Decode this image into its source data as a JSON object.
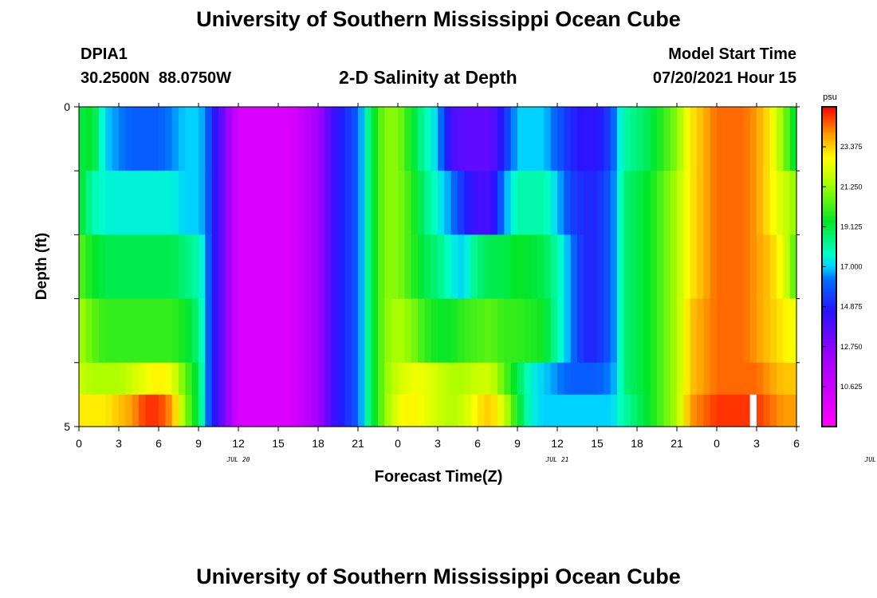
{
  "header": {
    "title": "University of Southern Mississippi Ocean Cube",
    "station_id": "DPIA1",
    "station_coords": "30.2500N  88.0750W",
    "plot_title": "2-D Salinity at Depth",
    "model_start_label": "Model Start Time",
    "model_start_value": "07/20/2021 Hour 15"
  },
  "footer": {
    "title": "University of Southern Mississippi Ocean Cube"
  },
  "chart_data": {
    "type": "heatmap",
    "title": "2-D Salinity at Depth",
    "xlabel": "Forecast Time(Z)",
    "ylabel": "Depth (ft)",
    "ylim": [
      0,
      5
    ],
    "y_tick_labels": [
      "0",
      "5"
    ],
    "x_tick_labels": [
      "0",
      "3",
      "6",
      "9",
      "12",
      "15",
      "18",
      "21",
      "0",
      "3",
      "6",
      "9",
      "12",
      "15",
      "18",
      "21",
      "0",
      "3",
      "6"
    ],
    "date_labels": [
      {
        "text": "JUL 20",
        "hour": 12
      },
      {
        "text": "JUL 21",
        "hour": 36
      },
      {
        "text": "JUL 22",
        "hour": 60
      }
    ],
    "x_hours_total": 54,
    "colorbar": {
      "unit": "psu",
      "min": 8.5,
      "max": 25.5,
      "ticks": [
        "10.625",
        "12.750",
        "14.875",
        "17.000",
        "19.125",
        "21.250",
        "23.375"
      ]
    },
    "hour_step": 0.5,
    "layers": [
      {
        "name": "0-1 ft",
        "keys": [
          [
            0,
            19
          ],
          [
            1,
            19.5
          ],
          [
            2,
            17
          ],
          [
            3,
            16.5
          ],
          [
            4,
            16
          ],
          [
            5,
            16
          ],
          [
            6,
            16
          ],
          [
            7,
            16.5
          ],
          [
            8,
            17
          ],
          [
            9,
            17
          ],
          [
            9.5,
            16.5
          ],
          [
            10,
            15
          ],
          [
            10.5,
            14
          ],
          [
            11,
            13
          ],
          [
            12,
            10
          ],
          [
            16,
            10
          ],
          [
            18,
            12
          ],
          [
            19,
            14
          ],
          [
            20,
            15
          ],
          [
            21,
            16
          ],
          [
            21.5,
            17.5
          ],
          [
            22,
            19
          ],
          [
            23,
            21
          ],
          [
            24,
            21
          ],
          [
            25,
            19.5
          ],
          [
            26,
            18
          ],
          [
            27,
            17
          ],
          [
            27.5,
            15.5
          ],
          [
            28,
            14
          ],
          [
            29,
            13.5
          ],
          [
            30,
            13.5
          ],
          [
            31,
            13.5
          ],
          [
            32,
            15
          ],
          [
            33,
            17
          ],
          [
            35,
            17
          ],
          [
            36,
            16
          ],
          [
            37,
            15
          ],
          [
            38,
            14.5
          ],
          [
            39,
            14.5
          ],
          [
            40,
            15.5
          ],
          [
            40.5,
            17
          ],
          [
            41,
            18
          ],
          [
            43,
            19
          ],
          [
            45,
            21
          ],
          [
            46,
            23
          ],
          [
            48,
            24.5
          ],
          [
            50,
            24.5
          ],
          [
            51,
            24
          ],
          [
            52,
            23
          ],
          [
            53,
            21
          ],
          [
            54,
            19
          ]
        ]
      },
      {
        "name": "1-2 ft",
        "keys": [
          [
            0,
            19.5
          ],
          [
            1,
            18
          ],
          [
            2,
            17.5
          ],
          [
            7,
            17.5
          ],
          [
            8,
            17
          ],
          [
            9,
            17
          ],
          [
            9.5,
            16.5
          ],
          [
            10,
            15
          ],
          [
            10.5,
            14
          ],
          [
            11,
            13
          ],
          [
            12,
            10
          ],
          [
            16,
            10
          ],
          [
            18,
            12
          ],
          [
            19,
            14
          ],
          [
            20,
            15
          ],
          [
            21,
            16
          ],
          [
            21.5,
            17.5
          ],
          [
            22,
            19
          ],
          [
            23,
            21
          ],
          [
            24,
            21
          ],
          [
            25,
            20
          ],
          [
            26,
            18.5
          ],
          [
            27,
            17.5
          ],
          [
            28,
            16.5
          ],
          [
            29,
            15
          ],
          [
            30,
            14
          ],
          [
            31,
            14
          ],
          [
            32,
            16.5
          ],
          [
            33,
            18
          ],
          [
            35,
            18
          ],
          [
            36,
            17
          ],
          [
            37,
            15.5
          ],
          [
            38,
            15
          ],
          [
            39,
            15
          ],
          [
            40,
            16
          ],
          [
            40.5,
            17
          ],
          [
            41,
            18.5
          ],
          [
            43,
            19.5
          ],
          [
            45,
            21.5
          ],
          [
            46,
            23
          ],
          [
            48,
            24.5
          ],
          [
            50,
            24.5
          ],
          [
            51,
            24
          ],
          [
            52,
            23
          ],
          [
            53,
            22
          ],
          [
            54,
            21
          ]
        ]
      },
      {
        "name": "2-3 ft",
        "keys": [
          [
            0,
            20.5
          ],
          [
            1,
            19.5
          ],
          [
            2,
            19
          ],
          [
            7,
            19
          ],
          [
            8,
            18.5
          ],
          [
            9,
            18
          ],
          [
            9.5,
            17
          ],
          [
            10,
            15
          ],
          [
            10.5,
            14
          ],
          [
            11,
            13
          ],
          [
            12,
            10
          ],
          [
            16,
            10
          ],
          [
            18,
            12
          ],
          [
            19,
            14
          ],
          [
            20,
            15
          ],
          [
            21,
            16
          ],
          [
            21.5,
            17.5
          ],
          [
            22,
            19
          ],
          [
            23,
            21
          ],
          [
            24,
            21
          ],
          [
            25,
            20
          ],
          [
            26,
            19
          ],
          [
            27,
            18.5
          ],
          [
            28,
            17.5
          ],
          [
            29,
            17
          ],
          [
            29.5,
            18
          ],
          [
            30,
            18.5
          ],
          [
            31,
            19
          ],
          [
            32,
            19
          ],
          [
            33,
            19.5
          ],
          [
            35,
            19
          ],
          [
            36,
            18
          ],
          [
            37,
            16.5
          ],
          [
            38,
            15
          ],
          [
            39,
            15
          ],
          [
            40,
            16
          ],
          [
            40.5,
            17
          ],
          [
            41,
            18.5
          ],
          [
            43,
            19.5
          ],
          [
            45,
            21.5
          ],
          [
            46,
            23
          ],
          [
            48,
            24.5
          ],
          [
            50,
            24.5
          ],
          [
            51,
            24
          ],
          [
            52,
            23.5
          ],
          [
            53,
            22.5
          ],
          [
            54,
            20
          ]
        ]
      },
      {
        "name": "3-4 ft",
        "keys": [
          [
            0,
            21.5
          ],
          [
            1,
            20.5
          ],
          [
            2,
            20
          ],
          [
            7,
            20
          ],
          [
            8,
            19.5
          ],
          [
            9,
            18.5
          ],
          [
            9.5,
            17
          ],
          [
            10,
            15
          ],
          [
            10.5,
            14
          ],
          [
            11,
            13
          ],
          [
            12,
            10
          ],
          [
            16,
            10
          ],
          [
            18,
            12
          ],
          [
            19,
            14
          ],
          [
            20,
            15
          ],
          [
            21,
            16
          ],
          [
            21.5,
            17.5
          ],
          [
            22,
            19
          ],
          [
            23,
            21
          ],
          [
            24,
            21.5
          ],
          [
            25,
            21
          ],
          [
            26,
            20
          ],
          [
            27,
            19.5
          ],
          [
            28,
            19.5
          ],
          [
            29,
            20
          ],
          [
            31,
            20.5
          ],
          [
            32,
            20
          ],
          [
            33,
            20
          ],
          [
            35,
            19.5
          ],
          [
            36,
            18
          ],
          [
            37,
            16.5
          ],
          [
            38,
            15
          ],
          [
            39,
            15
          ],
          [
            40,
            16
          ],
          [
            40.5,
            17
          ],
          [
            41,
            18.5
          ],
          [
            43,
            19.5
          ],
          [
            45,
            21.5
          ],
          [
            46,
            23.5
          ],
          [
            48,
            24.5
          ],
          [
            50,
            24.5
          ],
          [
            51,
            24
          ],
          [
            52,
            23.5
          ],
          [
            53,
            23
          ],
          [
            54,
            22.5
          ]
        ]
      },
      {
        "name": "4-4.5 ft",
        "keys": [
          [
            0,
            22
          ],
          [
            1,
            21.5
          ],
          [
            3,
            21.5
          ],
          [
            4,
            22
          ],
          [
            5,
            22.5
          ],
          [
            6,
            23
          ],
          [
            7,
            22.5
          ],
          [
            8,
            20.5
          ],
          [
            9,
            19
          ],
          [
            9.5,
            17
          ],
          [
            10,
            15
          ],
          [
            10.5,
            14
          ],
          [
            11,
            13
          ],
          [
            12,
            10
          ],
          [
            16,
            10
          ],
          [
            18,
            12
          ],
          [
            19,
            14
          ],
          [
            20,
            15
          ],
          [
            21,
            16
          ],
          [
            21.5,
            17.5
          ],
          [
            22,
            19
          ],
          [
            23,
            21
          ],
          [
            24,
            22
          ],
          [
            25,
            22.5
          ],
          [
            26,
            22.5
          ],
          [
            27,
            22
          ],
          [
            28,
            21.5
          ],
          [
            29,
            21.5
          ],
          [
            30,
            22
          ],
          [
            31,
            22
          ],
          [
            32,
            20.5
          ],
          [
            33,
            19
          ],
          [
            34,
            17.5
          ],
          [
            35,
            17
          ],
          [
            36,
            16.5
          ],
          [
            37,
            16
          ],
          [
            38,
            16
          ],
          [
            39,
            16
          ],
          [
            40,
            16.5
          ],
          [
            40.5,
            17
          ],
          [
            41,
            18.5
          ],
          [
            43,
            19.5
          ],
          [
            45,
            21.5
          ],
          [
            46,
            23.5
          ],
          [
            48,
            24.5
          ],
          [
            50,
            24.5
          ],
          [
            51,
            24.5
          ],
          [
            52,
            24
          ],
          [
            53,
            23.5
          ],
          [
            54,
            23.5
          ]
        ]
      },
      {
        "name": "4.5-5 ft",
        "keys": [
          [
            0,
            23
          ],
          [
            2,
            23
          ],
          [
            3,
            23.5
          ],
          [
            4,
            24
          ],
          [
            5,
            25
          ],
          [
            6,
            25
          ],
          [
            7,
            24
          ],
          [
            7.5,
            22.5
          ],
          [
            8,
            21
          ],
          [
            9,
            19
          ],
          [
            9.5,
            17
          ],
          [
            10,
            15
          ],
          [
            10.5,
            14
          ],
          [
            11,
            13
          ],
          [
            12,
            10
          ],
          [
            16,
            10
          ],
          [
            18,
            12
          ],
          [
            19,
            14
          ],
          [
            20,
            15
          ],
          [
            21,
            16
          ],
          [
            21.5,
            17.5
          ],
          [
            22,
            19
          ],
          [
            23,
            21
          ],
          [
            24,
            22.5
          ],
          [
            25,
            23
          ],
          [
            26,
            22.5
          ],
          [
            27,
            22
          ],
          [
            28,
            21.5
          ],
          [
            29,
            22
          ],
          [
            30,
            23
          ],
          [
            31,
            23.5
          ],
          [
            32,
            22
          ],
          [
            33,
            19.5
          ],
          [
            34,
            17.5
          ],
          [
            35,
            17
          ],
          [
            36,
            17
          ],
          [
            37,
            17
          ],
          [
            38,
            17
          ],
          [
            39,
            17
          ],
          [
            40,
            17
          ],
          [
            41,
            18
          ],
          [
            43,
            19.5
          ],
          [
            45,
            21.5
          ],
          [
            46,
            24
          ],
          [
            48,
            25
          ],
          [
            50,
            25
          ],
          [
            51,
            25
          ],
          [
            52,
            24.5
          ],
          [
            53,
            24
          ],
          [
            54,
            24
          ]
        ]
      }
    ],
    "missing_cells": [
      {
        "layer": 5,
        "hour": 50.5
      }
    ]
  }
}
